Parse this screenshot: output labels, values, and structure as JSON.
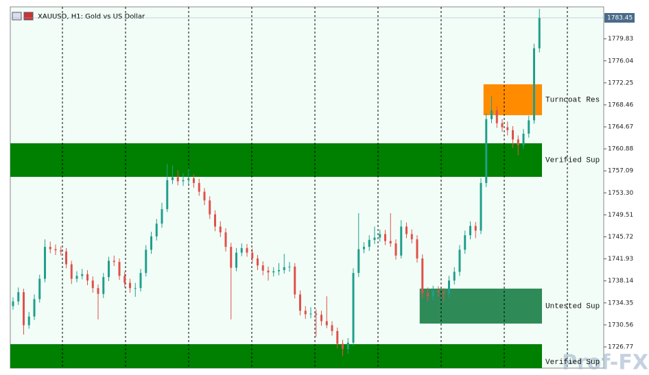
{
  "chart_data": {
    "type": "candlestick",
    "title": "XAUUSD, H1:  Gold vs US Dollar",
    "up_color": "#1f9e8c",
    "down_color": "#e0504a",
    "ylim": [
      1723.11,
      1785.34
    ],
    "yticks": [
      1779.83,
      1776.04,
      1772.25,
      1768.46,
      1764.67,
      1760.88,
      1757.09,
      {
        "value": 1753.3,
        "label": "1753.30"
      },
      1749.51,
      1745.72,
      1741.93,
      1738.14,
      1734.35,
      1730.56,
      1726.77
    ],
    "current_price": 1783.45,
    "ohlc": [
      [
        1733.8,
        1735.3,
        1733.2,
        1734.6
      ],
      [
        1734.6,
        1737.0,
        1734.0,
        1736.2
      ],
      [
        1736.2,
        1736.8,
        1728.9,
        1730.5
      ],
      [
        1730.5,
        1732.8,
        1729.9,
        1732.0
      ],
      [
        1732.0,
        1735.8,
        1731.4,
        1735.0
      ],
      [
        1735.0,
        1739.2,
        1734.4,
        1738.5
      ],
      [
        1738.5,
        1745.3,
        1737.9,
        1744.0
      ],
      [
        1744.0,
        1744.9,
        1742.9,
        1743.6
      ],
      [
        1743.6,
        1744.4,
        1742.6,
        1743.4
      ],
      [
        1743.4,
        1744.1,
        1742.5,
        1743.2
      ],
      [
        1743.2,
        1743.8,
        1740.3,
        1741.0
      ],
      [
        1741.0,
        1741.6,
        1737.6,
        1738.5
      ],
      [
        1738.5,
        1739.8,
        1737.9,
        1739.0
      ],
      [
        1739.0,
        1740.2,
        1738.4,
        1739.3
      ],
      [
        1739.3,
        1740.0,
        1737.4,
        1738.2
      ],
      [
        1738.2,
        1738.9,
        1736.1,
        1736.9
      ],
      [
        1736.9,
        1737.5,
        1731.5,
        1735.9
      ],
      [
        1735.9,
        1739.5,
        1735.2,
        1738.8
      ],
      [
        1738.8,
        1742.3,
        1738.1,
        1741.6
      ],
      [
        1741.6,
        1742.5,
        1740.7,
        1741.4
      ],
      [
        1741.4,
        1742.0,
        1738.3,
        1739.0
      ],
      [
        1739.0,
        1739.7,
        1737.0,
        1737.8
      ],
      [
        1737.8,
        1738.5,
        1736.1,
        1736.9
      ],
      [
        1736.9,
        1737.8,
        1735.4,
        1736.9
      ],
      [
        1736.9,
        1740.2,
        1736.3,
        1739.5
      ],
      [
        1739.5,
        1744.3,
        1738.9,
        1743.5
      ],
      [
        1743.5,
        1746.6,
        1742.8,
        1745.8
      ],
      [
        1745.8,
        1748.8,
        1745.1,
        1748.0
      ],
      [
        1748.0,
        1751.6,
        1747.3,
        1750.5
      ],
      [
        1750.5,
        1758.3,
        1750.0,
        1755.5
      ],
      [
        1755.5,
        1758.0,
        1754.8,
        1756.0
      ],
      [
        1756.0,
        1757.2,
        1754.6,
        1755.3
      ],
      [
        1755.3,
        1756.7,
        1754.5,
        1755.5
      ],
      [
        1755.5,
        1757.5,
        1754.8,
        1755.8
      ],
      [
        1755.8,
        1756.5,
        1754.2,
        1755.0
      ],
      [
        1755.0,
        1755.7,
        1752.8,
        1753.5
      ],
      [
        1753.5,
        1754.1,
        1751.2,
        1752.0
      ],
      [
        1752.0,
        1752.7,
        1748.8,
        1749.6
      ],
      [
        1749.6,
        1750.3,
        1746.7,
        1747.5
      ],
      [
        1747.5,
        1748.4,
        1745.7,
        1746.5
      ],
      [
        1746.5,
        1747.2,
        1743.2,
        1744.0
      ],
      [
        1744.0,
        1744.7,
        1731.5,
        1740.4
      ],
      [
        1740.4,
        1743.8,
        1739.8,
        1743.0
      ],
      [
        1743.0,
        1744.6,
        1742.4,
        1743.8
      ],
      [
        1743.8,
        1744.5,
        1742.3,
        1743.0
      ],
      [
        1743.0,
        1743.7,
        1741.3,
        1742.0
      ],
      [
        1742.0,
        1742.6,
        1740.0,
        1740.8
      ],
      [
        1740.8,
        1741.5,
        1739.1,
        1739.9
      ],
      [
        1739.9,
        1740.6,
        1738.2,
        1739.6
      ],
      [
        1739.6,
        1740.5,
        1738.9,
        1739.8
      ],
      [
        1739.8,
        1741.2,
        1739.1,
        1740.0
      ],
      [
        1740.0,
        1742.8,
        1739.4,
        1740.5
      ],
      [
        1740.5,
        1741.4,
        1739.7,
        1740.6
      ],
      [
        1740.6,
        1741.2,
        1735.1,
        1735.8
      ],
      [
        1735.8,
        1736.5,
        1732.2,
        1733.0
      ],
      [
        1733.0,
        1733.8,
        1731.6,
        1732.4
      ],
      [
        1732.4,
        1733.6,
        1731.7,
        1732.5
      ],
      [
        1732.5,
        1733.2,
        1728.5,
        1732.3
      ],
      [
        1732.3,
        1733.0,
        1730.4,
        1731.2
      ],
      [
        1731.2,
        1735.5,
        1730.0,
        1730.5
      ],
      [
        1730.5,
        1731.2,
        1728.7,
        1729.5
      ],
      [
        1729.5,
        1730.1,
        1726.5,
        1727.3
      ],
      [
        1727.3,
        1728.0,
        1725.2,
        1726.4
      ],
      [
        1726.4,
        1728.3,
        1725.6,
        1727.5
      ],
      [
        1727.5,
        1740.3,
        1726.9,
        1739.5
      ],
      [
        1739.5,
        1749.8,
        1738.8,
        1743.6
      ],
      [
        1743.6,
        1744.8,
        1742.9,
        1744.0
      ],
      [
        1744.0,
        1746.0,
        1743.3,
        1745.2
      ],
      [
        1745.2,
        1747.5,
        1744.5,
        1745.6
      ],
      [
        1745.6,
        1747.0,
        1744.9,
        1746.2
      ],
      [
        1746.2,
        1746.9,
        1744.3,
        1745.0
      ],
      [
        1745.0,
        1749.8,
        1744.0,
        1744.6
      ],
      [
        1744.6,
        1745.3,
        1741.8,
        1742.5
      ],
      [
        1742.5,
        1748.6,
        1742.0,
        1747.5
      ],
      [
        1747.5,
        1748.2,
        1745.5,
        1746.2
      ],
      [
        1746.2,
        1747.0,
        1744.6,
        1745.3
      ],
      [
        1745.3,
        1746.0,
        1741.3,
        1742.0
      ],
      [
        1742.0,
        1742.7,
        1735.2,
        1736.0
      ],
      [
        1736.0,
        1737.0,
        1734.6,
        1735.5
      ],
      [
        1735.5,
        1737.3,
        1734.8,
        1736.4
      ],
      [
        1736.4,
        1737.2,
        1735.4,
        1736.2
      ],
      [
        1736.2,
        1736.9,
        1734.6,
        1735.9
      ],
      [
        1735.9,
        1739.0,
        1735.2,
        1738.2
      ],
      [
        1738.2,
        1740.5,
        1737.5,
        1739.7
      ],
      [
        1739.7,
        1744.3,
        1739.0,
        1743.5
      ],
      [
        1743.5,
        1746.8,
        1742.8,
        1746.0
      ],
      [
        1746.0,
        1748.4,
        1745.3,
        1747.6
      ],
      [
        1747.6,
        1748.3,
        1745.5,
        1746.8
      ],
      [
        1746.8,
        1755.8,
        1746.2,
        1755.0
      ],
      [
        1755.0,
        1767.0,
        1754.3,
        1766.0
      ],
      [
        1766.0,
        1770.0,
        1765.3,
        1767.5
      ],
      [
        1767.5,
        1768.2,
        1764.5,
        1765.3
      ],
      [
        1765.3,
        1766.0,
        1763.8,
        1764.6
      ],
      [
        1764.6,
        1765.6,
        1763.2,
        1764.1
      ],
      [
        1764.1,
        1764.8,
        1761.0,
        1762.5
      ],
      [
        1762.5,
        1763.2,
        1759.8,
        1761.5
      ],
      [
        1761.5,
        1764.3,
        1760.9,
        1763.5
      ],
      [
        1763.5,
        1766.6,
        1762.8,
        1765.8
      ],
      [
        1765.8,
        1779.0,
        1765.2,
        1778.2
      ],
      [
        1778.2,
        1785.0,
        1777.5,
        1783.45
      ]
    ],
    "zones": [
      {
        "label": "Turncoat Res",
        "low": 1766.68,
        "high": 1772.0,
        "from": 89,
        "color": "#ff8c00"
      },
      {
        "label": "Verified Sup",
        "low": 1756.06,
        "high": 1761.84,
        "from": 0,
        "color": "#008000"
      },
      {
        "label": "Untested Sup",
        "low": 1730.79,
        "high": 1736.81,
        "from": 77,
        "color": "#2e8b57"
      },
      {
        "label": "Verified Sup",
        "low": 1721.0,
        "high": 1727.24,
        "from": 0,
        "color": "#008000"
      }
    ],
    "watermark": "Prof-FX"
  }
}
